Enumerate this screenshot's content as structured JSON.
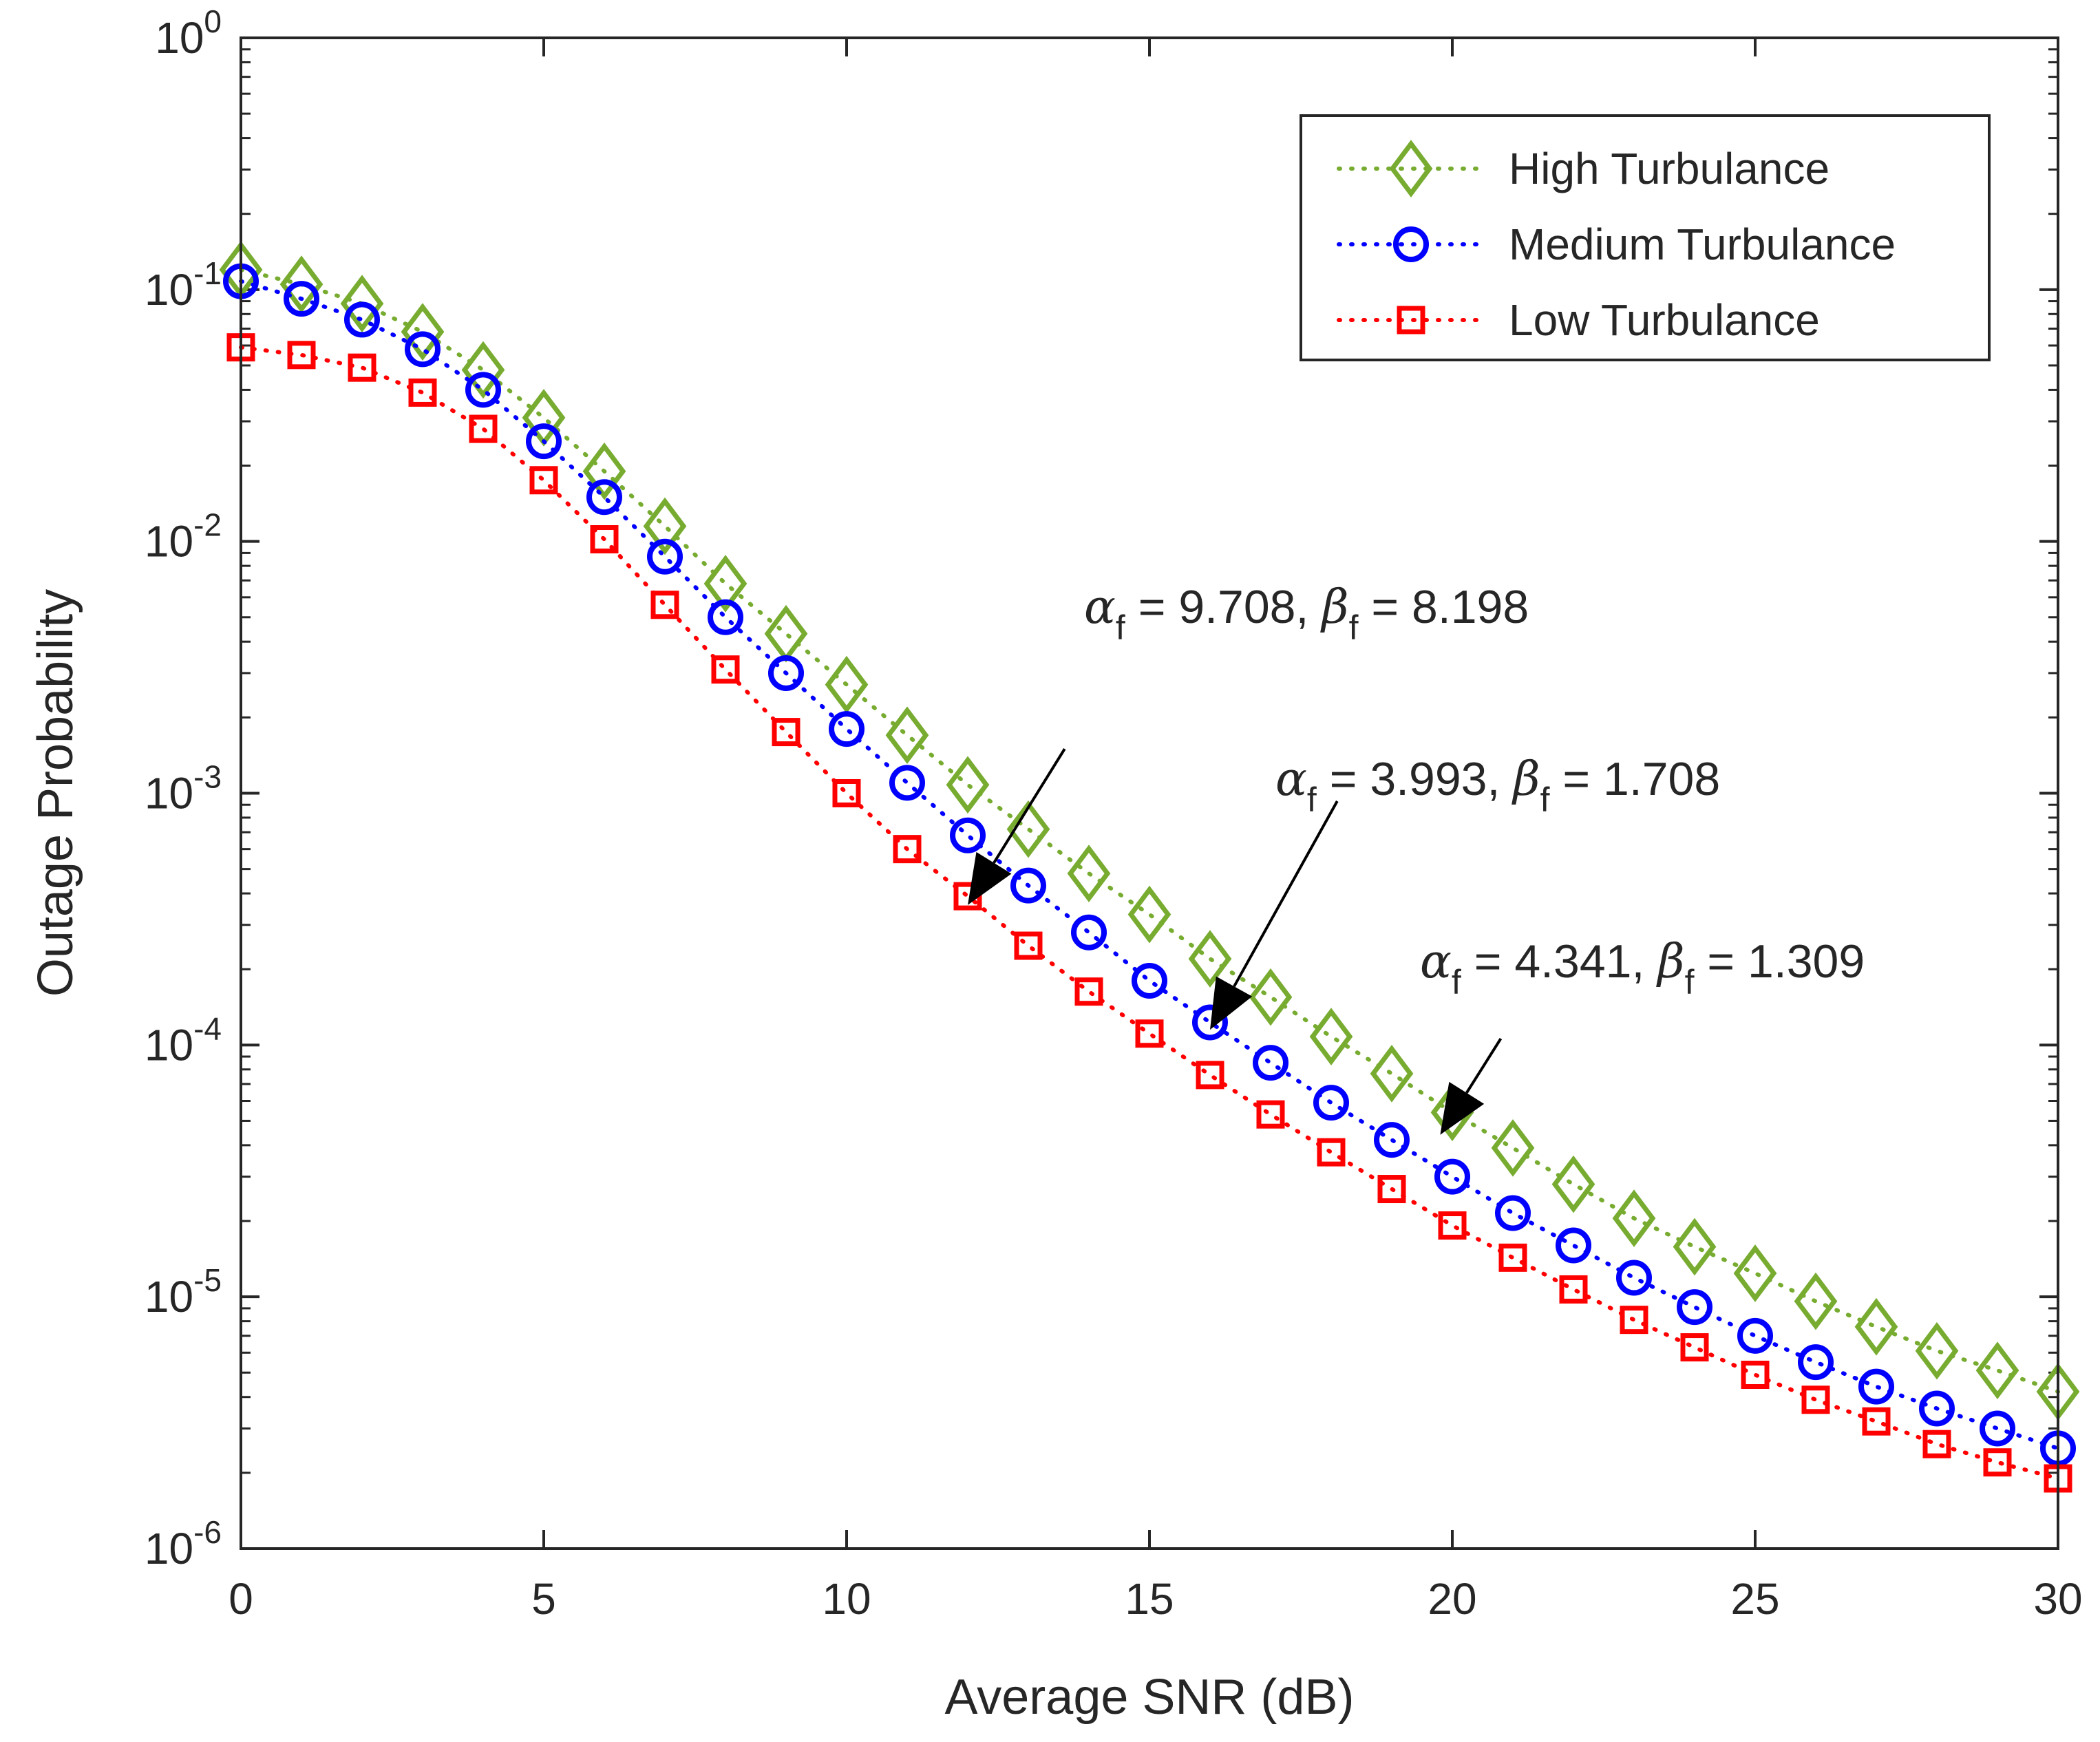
{
  "chart_data": {
    "type": "line",
    "xlabel": "Average SNR (dB)",
    "ylabel": "Outage Probability",
    "xlim": [
      0,
      30
    ],
    "ylim": [
      1e-06,
      1
    ],
    "yscale": "log",
    "grid": false,
    "legend_position": "top-right",
    "x_ticks": [
      0,
      5,
      10,
      15,
      20,
      25,
      30
    ],
    "x_tick_labels": [
      "0",
      "5",
      "10",
      "15",
      "20",
      "25",
      "30"
    ],
    "y_ticks": [
      {
        "value": 1,
        "base": "10",
        "exp": "0"
      },
      {
        "value": 0.1,
        "base": "10",
        "exp": "-1"
      },
      {
        "value": 0.01,
        "base": "10",
        "exp": "-2"
      },
      {
        "value": 0.001,
        "base": "10",
        "exp": "-3"
      },
      {
        "value": 0.0001,
        "base": "10",
        "exp": "-4"
      },
      {
        "value": 1e-05,
        "base": "10",
        "exp": "-5"
      },
      {
        "value": 1e-06,
        "base": "10",
        "exp": "-6"
      }
    ],
    "x": [
      0,
      1,
      2,
      3,
      4,
      5,
      6,
      7,
      8,
      9,
      10,
      11,
      12,
      13,
      14,
      15,
      16,
      17,
      18,
      19,
      20,
      21,
      22,
      23,
      24,
      25,
      26,
      27,
      28,
      29,
      30
    ],
    "series": [
      {
        "name": "High Turbulance",
        "color": "#77AC30",
        "marker": "diamond",
        "values": [
          0.12,
          0.105,
          0.088,
          0.068,
          0.048,
          0.031,
          0.019,
          0.0115,
          0.0068,
          0.0043,
          0.0027,
          0.0017,
          0.00108,
          0.00072,
          0.00048,
          0.00033,
          0.00022,
          0.000155,
          0.000108,
          7.7e-05,
          5.4e-05,
          3.9e-05,
          2.8e-05,
          2.05e-05,
          1.58e-05,
          1.24e-05,
          9.6e-06,
          7.6e-06,
          6.1e-06,
          5.1e-06,
          4.2e-06
        ]
      },
      {
        "name": "Medium Turbulance",
        "color": "#0000FF",
        "marker": "circle",
        "values": [
          0.108,
          0.092,
          0.076,
          0.058,
          0.04,
          0.025,
          0.015,
          0.0087,
          0.005,
          0.003,
          0.0018,
          0.0011,
          0.00068,
          0.00043,
          0.00028,
          0.00018,
          0.000123,
          8.5e-05,
          5.9e-05,
          4.2e-05,
          3e-05,
          2.15e-05,
          1.6e-05,
          1.19e-05,
          9.1e-06,
          7e-06,
          5.5e-06,
          4.4e-06,
          3.6e-06,
          3e-06,
          2.5e-06
        ]
      },
      {
        "name": "Low Turbulance",
        "color": "#FF0000",
        "marker": "square",
        "values": [
          0.059,
          0.055,
          0.049,
          0.039,
          0.028,
          0.0175,
          0.0102,
          0.0056,
          0.0031,
          0.00175,
          0.001,
          0.0006,
          0.00039,
          0.000248,
          0.000163,
          0.000111,
          7.6e-05,
          5.3e-05,
          3.75e-05,
          2.68e-05,
          1.92e-05,
          1.43e-05,
          1.07e-05,
          8.1e-06,
          6.3e-06,
          4.9e-06,
          3.9e-06,
          3.2e-06,
          2.6e-06,
          2.2e-06,
          1.9e-06
        ]
      }
    ],
    "annotations": [
      {
        "alpha": "α",
        "beta": "β",
        "sub": "f",
        "a_value": " = 9.708, ",
        "b_value": " = 8.198",
        "arrow_from": [
          13.6,
          0.0015
        ],
        "arrow_to": [
          12.0,
          0.00036
        ]
      },
      {
        "alpha": "α",
        "beta": "β",
        "sub": "f",
        "a_value": " = 3.993, ",
        "b_value": " = 1.708",
        "arrow_from": [
          18.1,
          0.00093
        ],
        "arrow_to": [
          16.0,
          0.000115
        ]
      },
      {
        "alpha": "α",
        "beta": "β",
        "sub": "f",
        "a_value": " = 4.341, ",
        "b_value": " = 1.309",
        "arrow_from": [
          20.8,
          0.000106
        ],
        "arrow_to": [
          19.8,
          4.4e-05
        ]
      }
    ]
  }
}
